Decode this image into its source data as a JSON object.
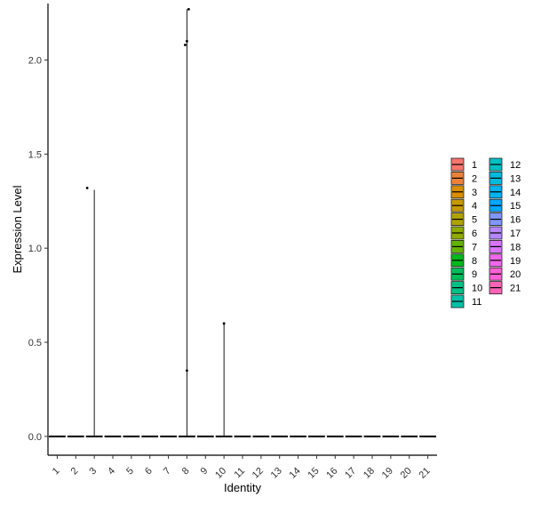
{
  "chart_data": {
    "type": "violin",
    "xlabel": "Identity",
    "ylabel": "Expression Level",
    "ylim": [
      -0.1,
      2.3
    ],
    "yticks": [
      0.0,
      0.5,
      1.0,
      1.5,
      2.0
    ],
    "ytick_labels": [
      "0.0",
      "0.5",
      "1.0",
      "1.5",
      "2.0"
    ],
    "categories": [
      "1",
      "2",
      "3",
      "4",
      "5",
      "6",
      "7",
      "8",
      "9",
      "10",
      "11",
      "12",
      "13",
      "14",
      "15",
      "16",
      "17",
      "18",
      "19",
      "20",
      "21"
    ],
    "colors": [
      "#F8766D",
      "#EC8239",
      "#DB8E00",
      "#C59900",
      "#AEA200",
      "#8FAA00",
      "#64B200",
      "#00B81B",
      "#00BD5C",
      "#00C085",
      "#00C1A7",
      "#00BFC4",
      "#00BADE",
      "#00B2F3",
      "#00A6FF",
      "#7F96FF",
      "#B385FF",
      "#D874FD",
      "#EF67EB",
      "#FD61D3",
      "#FF63B6"
    ],
    "series": [
      {
        "category": "1",
        "max": 0.0,
        "points": []
      },
      {
        "category": "2",
        "max": 0.0,
        "points": []
      },
      {
        "category": "3",
        "max": 1.31,
        "points": [
          1.32
        ]
      },
      {
        "category": "4",
        "max": 0.0,
        "points": []
      },
      {
        "category": "5",
        "max": 0.0,
        "points": []
      },
      {
        "category": "6",
        "max": 0.0,
        "points": []
      },
      {
        "category": "7",
        "max": 0.0,
        "points": []
      },
      {
        "category": "8",
        "max": 2.27,
        "points": [
          2.27,
          2.1,
          2.08,
          0.35
        ]
      },
      {
        "category": "9",
        "max": 0.0,
        "points": []
      },
      {
        "category": "10",
        "max": 0.6,
        "points": [
          0.6
        ]
      },
      {
        "category": "11",
        "max": 0.0,
        "points": []
      },
      {
        "category": "12",
        "max": 0.0,
        "points": []
      },
      {
        "category": "13",
        "max": 0.0,
        "points": []
      },
      {
        "category": "14",
        "max": 0.0,
        "points": []
      },
      {
        "category": "15",
        "max": 0.0,
        "points": []
      },
      {
        "category": "16",
        "max": 0.0,
        "points": []
      },
      {
        "category": "17",
        "max": 0.0,
        "points": []
      },
      {
        "category": "18",
        "max": 0.0,
        "points": []
      },
      {
        "category": "19",
        "max": 0.0,
        "points": []
      },
      {
        "category": "20",
        "max": 0.0,
        "points": []
      },
      {
        "category": "21",
        "max": 0.0,
        "points": []
      }
    ],
    "legend": {
      "placement": "right",
      "columns": 2,
      "entries": [
        "1",
        "2",
        "3",
        "4",
        "5",
        "6",
        "7",
        "8",
        "9",
        "10",
        "11",
        "12",
        "13",
        "14",
        "15",
        "16",
        "17",
        "18",
        "19",
        "20",
        "21"
      ]
    },
    "grid": false
  }
}
